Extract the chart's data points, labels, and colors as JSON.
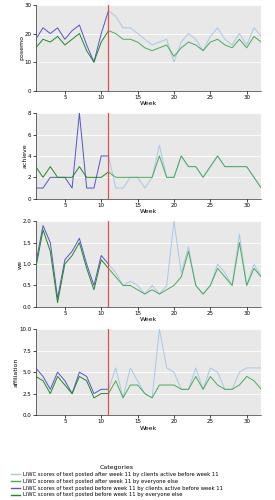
{
  "panels": [
    {
      "ylabel": "posemo",
      "ylim": [
        0,
        30
      ],
      "yticks": [
        0,
        10,
        20,
        30
      ],
      "before_clients_x": [
        1,
        2,
        3,
        4,
        5,
        6,
        7,
        8,
        9,
        10,
        11
      ],
      "before_clients_y": [
        18,
        22,
        20,
        22,
        18,
        21,
        23,
        16,
        10,
        20,
        28
      ],
      "before_everyone_x": [
        1,
        2,
        3,
        4,
        5,
        6,
        7,
        8,
        9,
        10,
        11
      ],
      "before_everyone_y": [
        15,
        18,
        17,
        19,
        16,
        18,
        20,
        14,
        10,
        17,
        21
      ],
      "after_clients_x": [
        11,
        12,
        13,
        14,
        15,
        16,
        17,
        18,
        19,
        20,
        21,
        22,
        23,
        24,
        25,
        26,
        27,
        28,
        29,
        30,
        31,
        32
      ],
      "after_clients_y": [
        28,
        26,
        22,
        22,
        20,
        18,
        16,
        17,
        18,
        10,
        17,
        20,
        18,
        14,
        19,
        22,
        18,
        16,
        20,
        16,
        22,
        19
      ],
      "after_everyone_x": [
        11,
        12,
        13,
        14,
        15,
        16,
        17,
        18,
        19,
        20,
        21,
        22,
        23,
        24,
        25,
        26,
        27,
        28,
        29,
        30,
        31,
        32
      ],
      "after_everyone_y": [
        21,
        20,
        18,
        18,
        17,
        15,
        14,
        15,
        16,
        12,
        15,
        17,
        16,
        14,
        17,
        18,
        16,
        15,
        18,
        15,
        19,
        17
      ]
    },
    {
      "ylabel": "achieve",
      "ylim": [
        0,
        8
      ],
      "yticks": [
        0,
        2,
        4,
        6,
        8
      ],
      "before_clients_x": [
        1,
        2,
        3,
        4,
        5,
        6,
        7,
        8,
        9,
        10,
        11
      ],
      "before_clients_y": [
        1,
        1,
        2,
        2,
        2,
        1,
        8,
        1,
        1,
        4,
        4
      ],
      "before_everyone_x": [
        1,
        2,
        3,
        4,
        5,
        6,
        7,
        8,
        9,
        10,
        11
      ],
      "before_everyone_y": [
        3,
        2,
        3,
        2,
        2,
        2,
        3,
        2,
        2,
        2,
        2.5
      ],
      "after_clients_x": [
        11,
        12,
        13,
        14,
        15,
        16,
        17,
        18,
        19,
        20,
        21,
        22,
        23,
        24,
        25,
        26,
        27,
        28,
        29,
        30,
        31,
        32
      ],
      "after_clients_y": [
        4,
        1,
        1,
        2,
        2,
        1,
        2,
        5,
        2,
        2,
        4,
        3,
        3,
        2,
        3,
        4,
        3,
        3,
        3,
        3,
        2,
        1
      ],
      "after_everyone_x": [
        11,
        12,
        13,
        14,
        15,
        16,
        17,
        18,
        19,
        20,
        21,
        22,
        23,
        24,
        25,
        26,
        27,
        28,
        29,
        30,
        31,
        32
      ],
      "after_everyone_y": [
        2.5,
        2,
        2,
        2,
        2,
        2,
        2,
        4,
        2,
        2,
        4,
        3,
        3,
        2,
        3,
        4,
        3,
        3,
        3,
        3,
        2,
        1
      ]
    },
    {
      "ylabel": "we",
      "ylim": [
        0,
        2.0
      ],
      "yticks": [
        0.0,
        0.5,
        1.0,
        1.5,
        2.0
      ],
      "before_clients_x": [
        1,
        2,
        3,
        4,
        5,
        6,
        7,
        8,
        9,
        10,
        11
      ],
      "before_clients_y": [
        1.0,
        1.9,
        1.5,
        0.2,
        1.1,
        1.3,
        1.6,
        1.0,
        0.5,
        1.2,
        1.0
      ],
      "before_everyone_x": [
        1,
        2,
        3,
        4,
        5,
        6,
        7,
        8,
        9,
        10,
        11
      ],
      "before_everyone_y": [
        0.9,
        1.8,
        1.3,
        0.1,
        1.0,
        1.2,
        1.5,
        0.9,
        0.4,
        1.1,
        0.9
      ],
      "after_clients_x": [
        11,
        12,
        13,
        14,
        15,
        16,
        17,
        18,
        19,
        20,
        21,
        22,
        23,
        24,
        25,
        26,
        27,
        28,
        29,
        30,
        31,
        32
      ],
      "after_clients_y": [
        1.0,
        0.8,
        0.5,
        0.6,
        0.5,
        0.3,
        0.5,
        0.3,
        0.5,
        2.0,
        0.8,
        1.4,
        0.5,
        0.3,
        0.5,
        1.0,
        0.8,
        0.5,
        1.7,
        0.5,
        1.0,
        0.7
      ],
      "after_everyone_x": [
        11,
        12,
        13,
        14,
        15,
        16,
        17,
        18,
        19,
        20,
        21,
        22,
        23,
        24,
        25,
        26,
        27,
        28,
        29,
        30,
        31,
        32
      ],
      "after_everyone_y": [
        0.9,
        0.7,
        0.5,
        0.5,
        0.4,
        0.3,
        0.4,
        0.3,
        0.4,
        0.5,
        0.7,
        1.3,
        0.5,
        0.3,
        0.5,
        0.9,
        0.7,
        0.5,
        1.5,
        0.5,
        0.9,
        0.7
      ]
    },
    {
      "ylabel": "affiliation",
      "ylim": [
        0,
        10
      ],
      "yticks": [
        0.0,
        2.5,
        5.0,
        7.5,
        10.0
      ],
      "before_clients_x": [
        1,
        2,
        3,
        4,
        5,
        6,
        7,
        8,
        9,
        10,
        11
      ],
      "before_clients_y": [
        5.5,
        4.5,
        3.0,
        5.0,
        4.0,
        2.5,
        5.0,
        4.5,
        2.5,
        3.0,
        3.0
      ],
      "before_everyone_x": [
        1,
        2,
        3,
        4,
        5,
        6,
        7,
        8,
        9,
        10,
        11
      ],
      "before_everyone_y": [
        4.5,
        4.0,
        2.5,
        4.5,
        3.5,
        2.5,
        4.5,
        4.0,
        2.0,
        2.5,
        2.5
      ],
      "after_clients_x": [
        11,
        12,
        13,
        14,
        15,
        16,
        17,
        18,
        19,
        20,
        21,
        22,
        23,
        24,
        25,
        26,
        27,
        28,
        29,
        30,
        31,
        32
      ],
      "after_clients_y": [
        3.0,
        5.5,
        2.0,
        5.5,
        4.0,
        2.5,
        2.0,
        10.0,
        5.5,
        5.0,
        3.0,
        3.0,
        5.5,
        3.0,
        5.5,
        5.0,
        3.0,
        3.0,
        5.0,
        5.5,
        5.5,
        5.5
      ],
      "after_everyone_x": [
        11,
        12,
        13,
        14,
        15,
        16,
        17,
        18,
        19,
        20,
        21,
        22,
        23,
        24,
        25,
        26,
        27,
        28,
        29,
        30,
        31,
        32
      ],
      "after_everyone_y": [
        2.5,
        4.0,
        2.0,
        3.5,
        3.5,
        2.5,
        2.0,
        3.5,
        3.5,
        3.5,
        3.0,
        3.0,
        4.5,
        3.0,
        4.5,
        3.5,
        3.0,
        3.0,
        3.5,
        4.5,
        4.0,
        3.0
      ]
    }
  ],
  "vline_x": 11,
  "vline_color": "#d9534f",
  "bg_color": "#e8e8e8",
  "color_after_clients": "#a8c8e8",
  "color_after_everyone": "#4aaa5a",
  "color_before_clients": "#5555cc",
  "color_before_everyone": "#228822",
  "xlabel": "Week",
  "legend_title": "Categories",
  "legend_entries": [
    "LIWC scores of text posted after week 11 by clients active before week 11",
    "LIWC scores of text posted after week 11 by everyone else",
    "LIWC scores of text posted before week 11 by clients active before week 11",
    "LIWC scores of text posted before week 11 by everyone else"
  ],
  "legend_colors": [
    "#a8c8e8",
    "#4aaa5a",
    "#5555cc",
    "#228822"
  ],
  "xmin": 1,
  "xmax": 32,
  "xticks": [
    5,
    10,
    15,
    20,
    25,
    30
  ]
}
